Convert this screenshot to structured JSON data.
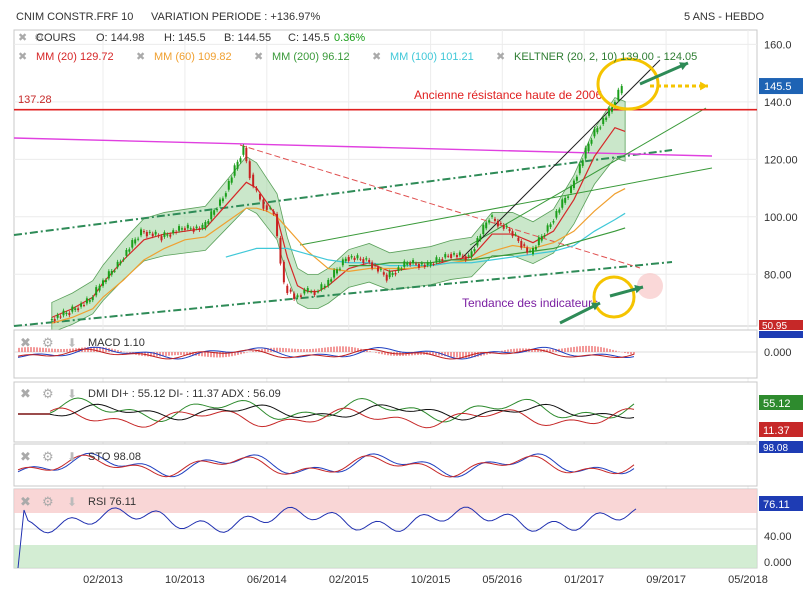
{
  "header": {
    "instrument": "CNIM CONSTR.FRF 10",
    "variation": "VARIATION PERIODE : +136.97%",
    "period": "5 ANS - HEBDO"
  },
  "price_row": {
    "series_label": "COURS",
    "open": "O: 144.98",
    "high": "H: 145.5",
    "low": "B: 144.55",
    "close": "C: 145.5",
    "change": "0.36%"
  },
  "indicators_row": [
    {
      "label": "MM (20) 129.72",
      "color": "#d62728"
    },
    {
      "label": "MM (60) 109.82",
      "color": "#f0a030"
    },
    {
      "label": "MM (200) 96.12",
      "color": "#3a9a3a"
    },
    {
      "label": "MM (100) 101.21",
      "color": "#40c8d8"
    },
    {
      "label": "KELTNER (20, 2, 10) 139.00 - 124.05",
      "color": "#2e7d32"
    }
  ],
  "annotations": {
    "resistance_value": "137.28",
    "resistance_text": "Ancienne résistance haute de 2006",
    "indicators_text": "Tendance des indicateurs"
  },
  "panels": {
    "macd": {
      "label": "MACD",
      "value": "1.10",
      "badge": "0.000",
      "badge_top": "50.95"
    },
    "dmi": {
      "label": "DMI",
      "text": "DI+ : 55.12 DI- : 11.37 ADX : 56.09",
      "badge_plus": "55.12",
      "badge_minus": "11.37"
    },
    "sto": {
      "label": "STO",
      "value": "98.08",
      "badge": "98.08"
    },
    "rsi": {
      "label": "RSI",
      "value": "76.11",
      "badge": "76.11",
      "tick": "40.00",
      "tick_low": "0.000"
    }
  },
  "colors": {
    "price_up": "#1a9e1a",
    "price_down": "#c82020",
    "resistance": "#e02020",
    "annotation_text": "#7b1fa2",
    "keltner_fill": "#9ed39e",
    "highlight_circle": "#f5c400",
    "arrow": "#2e8b57"
  },
  "chart_data": {
    "type": "line",
    "title": "CNIM CONSTR.FRF 10",
    "y_axis": {
      "ticks": [
        80,
        100,
        120,
        140,
        160
      ],
      "tick_labels": [
        "80.00",
        "100.00",
        "120.00",
        "140.0",
        "160.0"
      ],
      "range": [
        62,
        165
      ]
    },
    "x_axis": {
      "ticks": [
        "02/2013",
        "10/2013",
        "06/2014",
        "02/2015",
        "10/2015",
        "05/2016",
        "01/2017",
        "09/2017",
        "05/2018"
      ]
    },
    "last_price_label": "145.5",
    "resistance_level": 137.28,
    "price": {
      "x": [
        "2012-09",
        "2012-11",
        "2013-01",
        "2013-02",
        "2013-04",
        "2013-06",
        "2013-08",
        "2013-10",
        "2013-12",
        "2014-02",
        "2014-04",
        "2014-05",
        "2014-06",
        "2014-07",
        "2014-08",
        "2014-09",
        "2014-10",
        "2014-11",
        "2014-12",
        "2015-02",
        "2015-04",
        "2015-06",
        "2015-08",
        "2015-10",
        "2015-12",
        "2016-02",
        "2016-04",
        "2016-06",
        "2016-08",
        "2016-10",
        "2016-12",
        "2017-02",
        "2017-04",
        "2017-05"
      ],
      "y": [
        64,
        67,
        71,
        76,
        85,
        95,
        93,
        96,
        96,
        107,
        124,
        110,
        104,
        101,
        76,
        72,
        74,
        74,
        76,
        86,
        85,
        79,
        84,
        83,
        87,
        86,
        100,
        95,
        87,
        98,
        110,
        128,
        138,
        145.5
      ]
    },
    "series": [
      {
        "name": "MM (20)",
        "values": [
          65,
          68,
          72,
          77,
          85,
          92,
          94,
          95,
          96,
          104,
          112,
          110,
          105,
          100,
          86,
          76,
          74,
          74,
          76,
          82,
          84,
          81,
          82,
          83,
          85,
          86,
          94,
          94,
          91,
          95,
          106,
          121,
          131,
          129.72
        ]
      },
      {
        "name": "MM (60)",
        "values": [
          63,
          65,
          68,
          72,
          78,
          85,
          89,
          92,
          93,
          98,
          103,
          103,
          102,
          100,
          96,
          92,
          88,
          85,
          82,
          81,
          82,
          82,
          82,
          83,
          84,
          85,
          88,
          90,
          89,
          91,
          95,
          102,
          108,
          109.82
        ]
      },
      {
        "name": "MM (100)",
        "values": [
          null,
          null,
          null,
          null,
          null,
          null,
          null,
          null,
          null,
          86,
          88,
          89,
          89,
          89,
          89,
          88,
          87,
          86,
          85,
          84,
          84,
          83,
          83,
          83,
          84,
          84,
          85,
          86,
          87,
          88,
          90,
          95,
          99,
          101.21
        ]
      },
      {
        "name": "MM (200)",
        "values": [
          null,
          null,
          null,
          null,
          null,
          null,
          null,
          null,
          null,
          null,
          null,
          null,
          null,
          null,
          null,
          null,
          null,
          null,
          null,
          83,
          83,
          84,
          84,
          84,
          85,
          85,
          86,
          87,
          88,
          89,
          91,
          93,
          95,
          96.12
        ]
      }
    ],
    "keltner": {
      "upper": 139.0,
      "lower": 124.05
    },
    "subplots": {
      "macd": {
        "value": 1.1
      },
      "dmi": {
        "di_plus": 55.12,
        "di_minus": 11.37,
        "adx": 56.09
      },
      "sto": {
        "value": 98.08
      },
      "rsi": {
        "value": 76.11
      }
    }
  }
}
